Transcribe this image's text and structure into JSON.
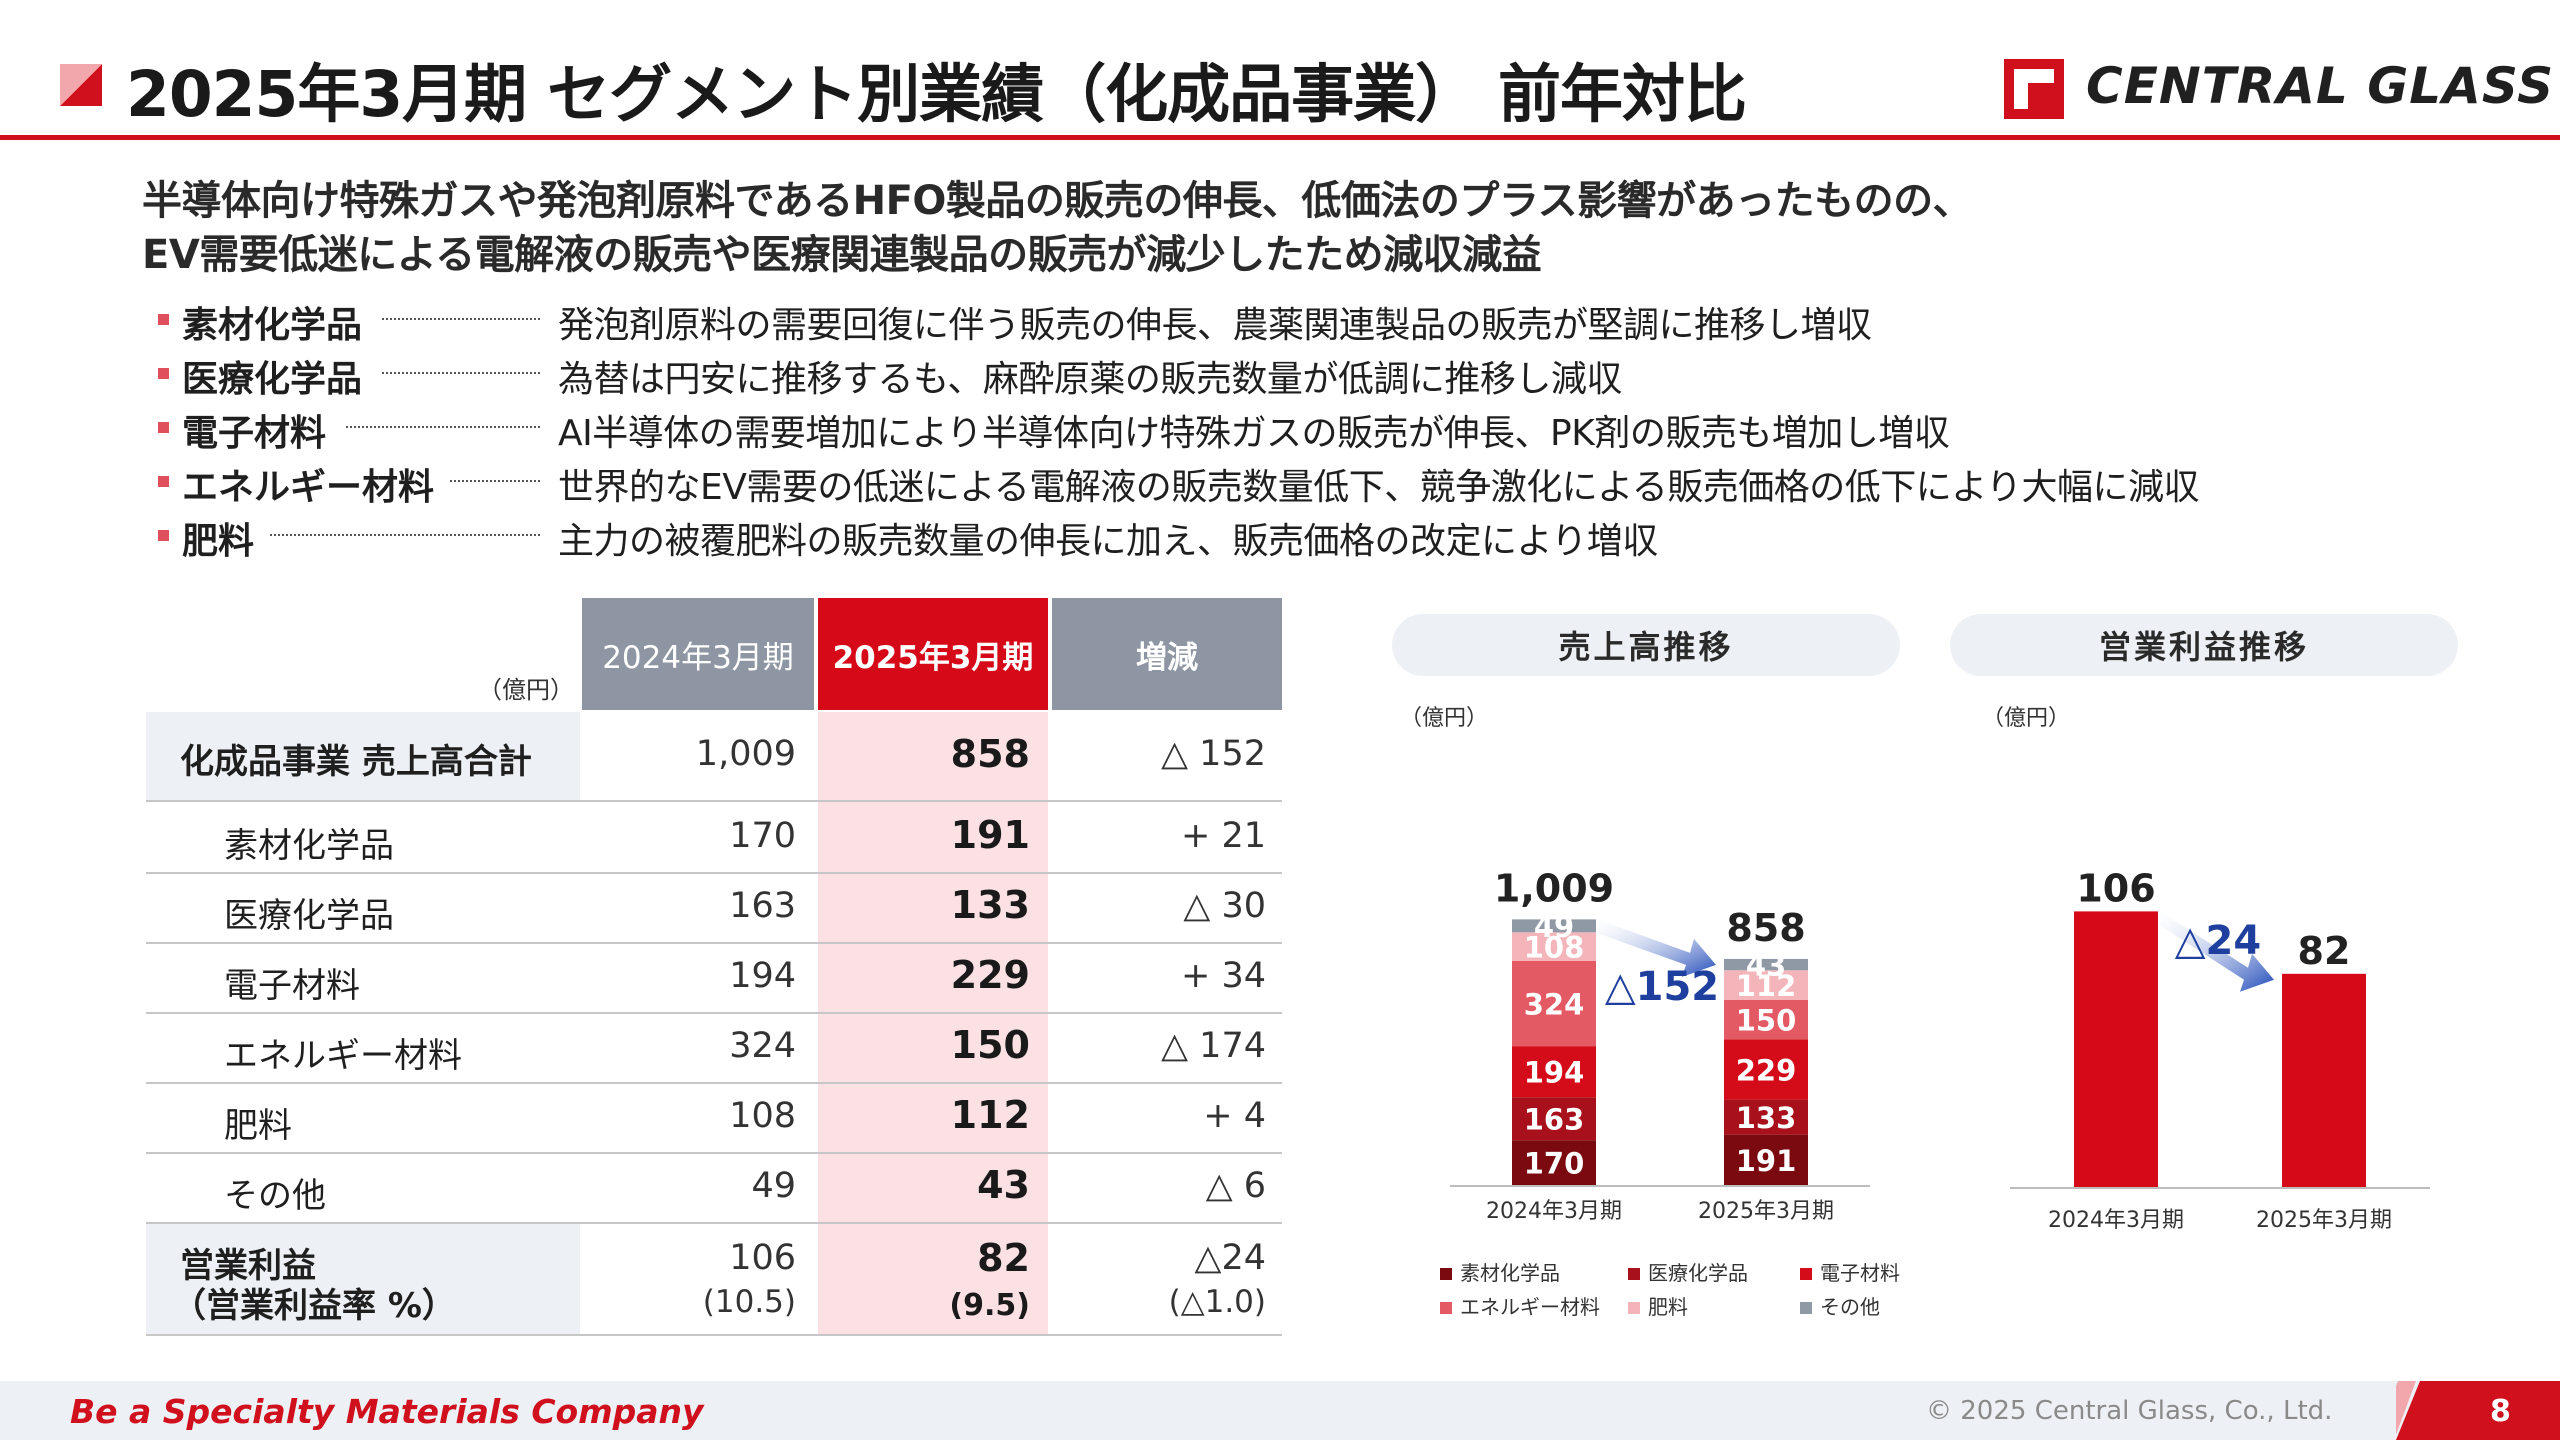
{
  "header": {
    "title": "2025年3月期 セグメント別業績（化成品事業） 前年対比",
    "brand": "CENTRAL GLASS"
  },
  "summary": {
    "line1": "半導体向け特殊ガスや発泡剤原料であるHFO製品の販売の伸長、低価法のプラス影響があったものの、",
    "line2": "EV需要低迷による電解液の販売や医療関連製品の販売が減少したため減収減益"
  },
  "segments": [
    {
      "name": "素材化学品",
      "desc": "発泡剤原料の需要回復に伴う販売の伸長、農薬関連製品の販売が堅調に推移し増収"
    },
    {
      "name": "医療化学品",
      "desc": "為替は円安に推移するも、麻酔原薬の販売数量が低調に推移し減収"
    },
    {
      "name": "電子材料",
      "desc": "AI半導体の需要増加により半導体向け特殊ガスの販売が伸長、PK剤の販売も増加し増収"
    },
    {
      "name": "エネルギー材料",
      "desc": "世界的なEV需要の低迷による電解液の販売数量低下、競争激化による販売価格の低下により大幅に減収"
    },
    {
      "name": "肥料",
      "desc": "主力の被覆肥料の販売数量の伸長に加え、販売価格の改定により増収"
    }
  ],
  "table": {
    "unit": "（億円）",
    "headers": [
      "2024年3月期",
      "2025年3月期",
      "増減"
    ],
    "rows": [
      {
        "label": "化成品事業 売上高合計",
        "fy2024": "1,009",
        "fy2025": "858",
        "diff": "△ 152"
      },
      {
        "label": "素材化学品",
        "fy2024": "170",
        "fy2025": "191",
        "diff": "+ 21"
      },
      {
        "label": "医療化学品",
        "fy2024": "163",
        "fy2025": "133",
        "diff": "△ 30"
      },
      {
        "label": "電子材料",
        "fy2024": "194",
        "fy2025": "229",
        "diff": "+ 34"
      },
      {
        "label": "エネルギー材料",
        "fy2024": "324",
        "fy2025": "150",
        "diff": "△ 174"
      },
      {
        "label": "肥料",
        "fy2024": "108",
        "fy2025": "112",
        "diff": "+ 4"
      },
      {
        "label": "その他",
        "fy2024": "49",
        "fy2025": "43",
        "diff": "△ 6"
      }
    ],
    "op_row": {
      "label1": "営業利益",
      "label2": "（営業利益率 %）",
      "fy2024": "106",
      "fy2024_rate": "(10.5)",
      "fy2025": "82",
      "fy2025_rate": "(9.5)",
      "diff": "△24",
      "diff_rate": "(△1.0)"
    }
  },
  "chart_data": [
    {
      "type": "bar",
      "stacked": true,
      "title": "売上高推移",
      "unit": "（億円）",
      "categories": [
        "2024年3月期",
        "2025年3月期"
      ],
      "totals": [
        1009,
        858
      ],
      "change_label": "△152",
      "series": [
        {
          "name": "素材化学品",
          "values": [
            170,
            191
          ],
          "color": "#7a0a10"
        },
        {
          "name": "医療化学品",
          "values": [
            163,
            133
          ],
          "color": "#a8101b"
        },
        {
          "name": "電子材料",
          "values": [
            194,
            229
          ],
          "color": "#d40c19"
        },
        {
          "name": "エネルギー材料",
          "values": [
            324,
            150
          ],
          "color": "#e45a64"
        },
        {
          "name": "肥料",
          "values": [
            108,
            112
          ],
          "color": "#f4b5ba"
        },
        {
          "name": "その他",
          "values": [
            49,
            43
          ],
          "color": "#8f98a5"
        }
      ]
    },
    {
      "type": "bar",
      "title": "営業利益推移",
      "unit": "（億円）",
      "categories": [
        "2024年3月期",
        "2025年3月期"
      ],
      "values": [
        106,
        82
      ],
      "change_label": "△24",
      "color": "#d50918"
    }
  ],
  "footer": {
    "tagline": "Be a Specialty Materials Company",
    "copyright": "© 2025 Central Glass, Co., Ltd.",
    "page": "8"
  }
}
